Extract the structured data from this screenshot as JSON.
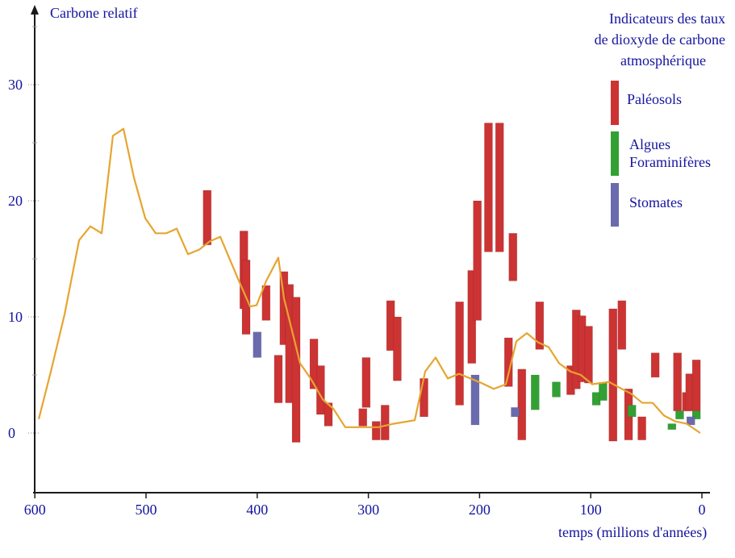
{
  "chart_data": {
    "type": "bar+line",
    "ylabel": "Carbone relatif",
    "xlabel": "temps (millions d'années)",
    "legend_title": [
      "Indicateurs des taux",
      "de dioxyde de carbone",
      "atmosphérique"
    ],
    "legend_placement": "top-right",
    "xlim": [
      600,
      0
    ],
    "ylim": [
      -5,
      37
    ],
    "x_ticks": [
      "600",
      "500",
      "400",
      "300",
      "200",
      "100",
      "0"
    ],
    "y_ticks": [
      "0",
      "10",
      "20",
      "30"
    ],
    "colors": {
      "paleosols": "#cc3333",
      "algues": "#33a033",
      "stomates": "#6a6aae",
      "model": "#e6a530",
      "axis": "#1a1a1a",
      "text": "#1414a0"
    },
    "legend": [
      {
        "key": "paleosols",
        "label": "Paléosols"
      },
      {
        "key": "algues",
        "label": "Algues\nForaminifères",
        "lines": [
          "Algues",
          "Foraminifères"
        ]
      },
      {
        "key": "stomates",
        "label": "Stomates"
      }
    ],
    "model_line": [
      [
        596.5,
        1.2
      ],
      [
        585.6,
        5.3
      ],
      [
        573.3,
        10.2
      ],
      [
        560.2,
        16.6
      ],
      [
        550.1,
        17.8
      ],
      [
        539.9,
        17.2
      ],
      [
        529.8,
        25.6
      ],
      [
        520.3,
        26.2
      ],
      [
        510.9,
        22.0
      ],
      [
        500.7,
        18.5
      ],
      [
        491.3,
        17.2
      ],
      [
        481.9,
        17.2
      ],
      [
        472.4,
        17.6
      ],
      [
        462.3,
        15.4
      ],
      [
        452.1,
        15.8
      ],
      [
        442.7,
        16.5
      ],
      [
        433.2,
        16.9
      ],
      [
        416.5,
        13.1
      ],
      [
        406.4,
        10.9
      ],
      [
        400.6,
        11.0
      ],
      [
        391.9,
        13.1
      ],
      [
        381.0,
        15.1
      ],
      [
        375.9,
        11.6
      ],
      [
        361.4,
        6.0
      ],
      [
        352.0,
        4.7
      ],
      [
        341.1,
        2.9
      ],
      [
        331.6,
        2.1
      ],
      [
        320.8,
        0.5
      ],
      [
        311.3,
        0.5
      ],
      [
        301.2,
        0.5
      ],
      [
        291.0,
        0.5
      ],
      [
        277.2,
        0.8
      ],
      [
        258.3,
        1.1
      ],
      [
        248.9,
        5.3
      ],
      [
        239.5,
        6.5
      ],
      [
        228.6,
        4.7
      ],
      [
        218.4,
        5.1
      ],
      [
        208.3,
        4.7
      ],
      [
        198.1,
        4.3
      ],
      [
        187.2,
        3.8
      ],
      [
        176.3,
        4.2
      ],
      [
        166.9,
        7.9
      ],
      [
        157.5,
        8.6
      ],
      [
        147.3,
        7.8
      ],
      [
        137.9,
        7.4
      ],
      [
        128.4,
        6.0
      ],
      [
        118.3,
        5.3
      ],
      [
        108.9,
        5.0
      ],
      [
        98.7,
        4.2
      ],
      [
        83.5,
        4.4
      ],
      [
        74.0,
        3.9
      ],
      [
        63.9,
        3.4
      ],
      [
        53.7,
        2.6
      ],
      [
        44.3,
        2.6
      ],
      [
        34.1,
        1.5
      ],
      [
        23.9,
        1.0
      ],
      [
        13.8,
        0.8
      ],
      [
        1.5,
        0.0
      ]
    ],
    "bars": {
      "paleosols": [
        {
          "age": 445,
          "min": 16.2,
          "max": 20.9
        },
        {
          "age": 412,
          "min": 10.7,
          "max": 17.4
        },
        {
          "age": 410,
          "min": 8.5,
          "max": 14.9
        },
        {
          "age": 392,
          "min": 9.7,
          "max": 12.7
        },
        {
          "age": 381,
          "min": 2.6,
          "max": 6.7
        },
        {
          "age": 376,
          "min": 7.6,
          "max": 13.9
        },
        {
          "age": 371,
          "min": 2.6,
          "max": 12.8
        },
        {
          "age": 365,
          "min": -0.8,
          "max": 11.7
        },
        {
          "age": 349,
          "min": 3.8,
          "max": 8.1
        },
        {
          "age": 343,
          "min": 1.6,
          "max": 5.8
        },
        {
          "age": 336,
          "min": 0.6,
          "max": 2.6
        },
        {
          "age": 305,
          "min": 0.6,
          "max": 2.1
        },
        {
          "age": 302,
          "min": 2.2,
          "max": 6.5
        },
        {
          "age": 293,
          "min": -0.6,
          "max": 1.0
        },
        {
          "age": 285,
          "min": -0.6,
          "max": 2.4
        },
        {
          "age": 280,
          "min": 7.1,
          "max": 11.4
        },
        {
          "age": 274,
          "min": 4.5,
          "max": 10.0
        },
        {
          "age": 250,
          "min": 1.4,
          "max": 4.7
        },
        {
          "age": 218,
          "min": 2.4,
          "max": 11.3
        },
        {
          "age": 207,
          "min": 6.0,
          "max": 14.0
        },
        {
          "age": 202,
          "min": 9.7,
          "max": 20.0
        },
        {
          "age": 192,
          "min": 15.6,
          "max": 26.7
        },
        {
          "age": 182,
          "min": 15.6,
          "max": 26.7
        },
        {
          "age": 174,
          "min": 4.0,
          "max": 8.2
        },
        {
          "age": 170,
          "min": 13.1,
          "max": 17.2
        },
        {
          "age": 162,
          "min": -0.6,
          "max": 5.5
        },
        {
          "age": 146,
          "min": 7.2,
          "max": 11.3
        },
        {
          "age": 118,
          "min": 3.3,
          "max": 5.8
        },
        {
          "age": 113,
          "min": 3.8,
          "max": 10.6
        },
        {
          "age": 108,
          "min": 4.4,
          "max": 10.1
        },
        {
          "age": 102,
          "min": 4.3,
          "max": 9.2
        },
        {
          "age": 80,
          "min": -0.7,
          "max": 10.7
        },
        {
          "age": 72,
          "min": 7.2,
          "max": 11.4
        },
        {
          "age": 66,
          "min": -0.6,
          "max": 3.8
        },
        {
          "age": 54,
          "min": -0.6,
          "max": 1.4
        },
        {
          "age": 42,
          "min": 4.8,
          "max": 6.9
        },
        {
          "age": 22,
          "min": 1.9,
          "max": 6.9
        },
        {
          "age": 14,
          "min": 1.9,
          "max": 3.5
        },
        {
          "age": 11,
          "min": 1.9,
          "max": 5.1
        },
        {
          "age": 5,
          "min": 1.9,
          "max": 6.3
        }
      ],
      "algues": [
        {
          "age": 150,
          "min": 2.0,
          "max": 5.0
        },
        {
          "age": 131,
          "min": 3.1,
          "max": 4.4
        },
        {
          "age": 95,
          "min": 2.4,
          "max": 3.5
        },
        {
          "age": 89,
          "min": 2.8,
          "max": 4.3
        },
        {
          "age": 63,
          "min": 1.4,
          "max": 2.4
        },
        {
          "age": 27,
          "min": 0.3,
          "max": 0.8
        },
        {
          "age": 20,
          "min": 1.2,
          "max": 1.9
        },
        {
          "age": 5,
          "min": 1.2,
          "max": 1.9
        }
      ],
      "stomates": [
        {
          "age": 400,
          "min": 6.5,
          "max": 8.7
        },
        {
          "age": 204,
          "min": 0.7,
          "max": 5.0
        },
        {
          "age": 168,
          "min": 1.4,
          "max": 2.2
        },
        {
          "age": 10,
          "min": 0.7,
          "max": 1.4
        }
      ]
    }
  }
}
